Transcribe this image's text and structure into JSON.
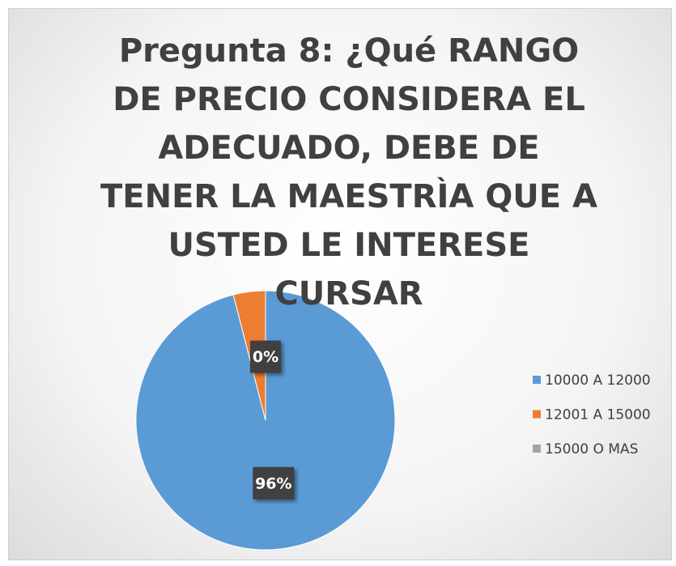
{
  "chart_data": {
    "type": "pie",
    "title": "Pregunta 8: ¿Qué RANGO DE PRECIO CONSIDERA EL ADECUADO, DEBE DE TENER LA MAESTRÌA QUE A USTED LE INTERESE CURSAR",
    "categories": [
      "10000 A 12000",
      "12001 A 15000",
      "15000 O MAS"
    ],
    "values": [
      96,
      4,
      0
    ],
    "value_labels": [
      "96%",
      null,
      "0%"
    ],
    "colors": [
      "#5b9bd5",
      "#ed7d31",
      "#a5a5a5"
    ],
    "legend": "right"
  }
}
